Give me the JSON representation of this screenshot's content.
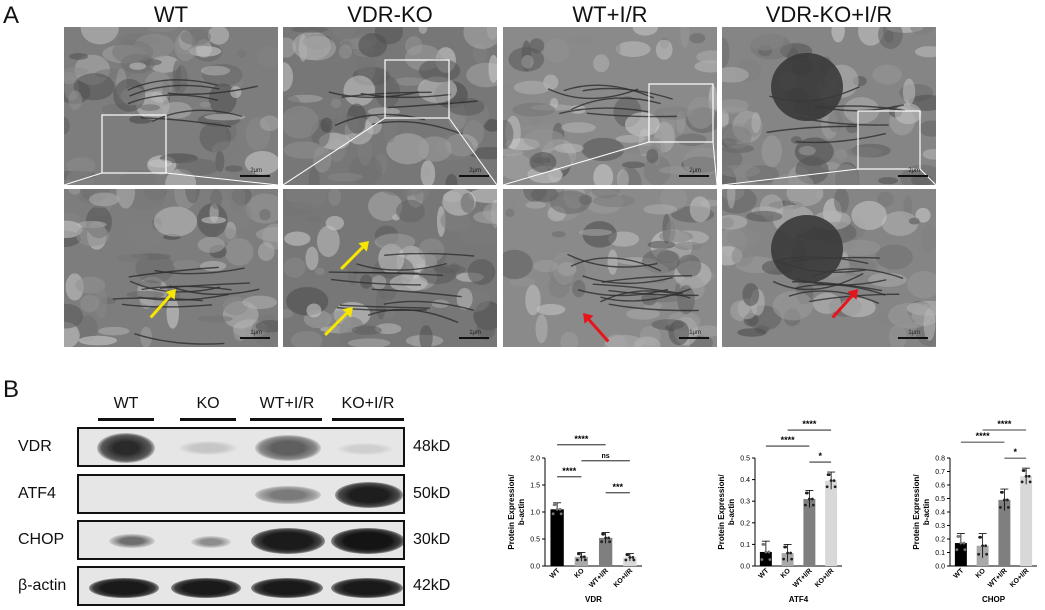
{
  "panels": {
    "a": "A",
    "b": "B"
  },
  "em": {
    "titles": [
      "WT",
      "VDR-KO",
      "WT+I/R",
      "VDR-KO+I/R"
    ],
    "scale_top": "2μm",
    "scale_bottom": "1μm"
  },
  "blot": {
    "lanes": [
      "WT",
      "KO",
      "WT+I/R",
      "KO+I/R"
    ],
    "proteins": [
      "VDR",
      "ATF4",
      "CHOP",
      "β-actin"
    ],
    "sizes": [
      "48kD",
      "50kD",
      "30kD",
      "42kD"
    ]
  },
  "charts": [
    {
      "type": "bar",
      "title": "VDR",
      "ylabel": "Protein Expression/\nb-actin",
      "categories": [
        "WT",
        "KO",
        "WT+I/R",
        "KO+I/R"
      ],
      "values": [
        1.05,
        0.17,
        0.52,
        0.16
      ],
      "errors": [
        0.12,
        0.08,
        0.1,
        0.07
      ],
      "colors": [
        "#000000",
        "#a9a9a9",
        "#7f7f7f",
        "#d8d8d8"
      ],
      "ylim": [
        0,
        2.0
      ],
      "yticks": [
        "0.0",
        "0.5",
        "1.0",
        "1.5",
        "2.0"
      ],
      "brackets": [
        {
          "from": 0,
          "to": 2,
          "label": "****"
        },
        {
          "from": 1,
          "to": 3,
          "label": "ns"
        },
        {
          "from": 0,
          "to": 1,
          "label": "****"
        },
        {
          "from": 2,
          "to": 3,
          "label": "***"
        }
      ]
    },
    {
      "type": "bar",
      "title": "ATF4",
      "ylabel": "Protein Expression/\nb-actin",
      "categories": [
        "WT",
        "KO",
        "WT+I/R",
        "KO+I/R"
      ],
      "values": [
        0.065,
        0.06,
        0.31,
        0.395
      ],
      "errors": [
        0.05,
        0.04,
        0.04,
        0.04
      ],
      "colors": [
        "#000000",
        "#a9a9a9",
        "#7f7f7f",
        "#d8d8d8"
      ],
      "ylim": [
        0,
        0.5
      ],
      "yticks": [
        "0.0",
        "0.1",
        "0.2",
        "0.3",
        "0.4",
        "0.5"
      ],
      "brackets": [
        {
          "from": 1,
          "to": 3,
          "label": "****"
        },
        {
          "from": 0,
          "to": 2,
          "label": "****"
        },
        {
          "from": 2,
          "to": 3,
          "label": "*"
        }
      ]
    },
    {
      "type": "bar",
      "title": "CHOP",
      "ylabel": "Protein Expression/\nb-actin",
      "categories": [
        "WT",
        "KO",
        "WT+I/R",
        "KO+I/R"
      ],
      "values": [
        0.17,
        0.15,
        0.49,
        0.665
      ],
      "errors": [
        0.07,
        0.09,
        0.08,
        0.06
      ],
      "colors": [
        "#000000",
        "#a9a9a9",
        "#7f7f7f",
        "#d8d8d8"
      ],
      "ylim": [
        0,
        0.8
      ],
      "yticks": [
        "0.0",
        "0.1",
        "0.2",
        "0.3",
        "0.4",
        "0.5",
        "0.6",
        "0.7",
        "0.8"
      ],
      "brackets": [
        {
          "from": 1,
          "to": 3,
          "label": "****"
        },
        {
          "from": 0,
          "to": 2,
          "label": "****"
        },
        {
          "from": 2,
          "to": 3,
          "label": "*"
        }
      ]
    }
  ]
}
